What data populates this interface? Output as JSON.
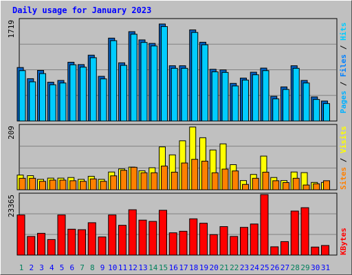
{
  "colors": {
    "background": "#c0c0c0",
    "plot_bg": "#c0c0c0",
    "title": "#0000ff",
    "hits": "#00ccff",
    "files": "#0080ff",
    "pages": "#00b0ff",
    "visits": "#ffff00",
    "sites": "#ff8000",
    "kbytes": "#ff0000",
    "weekend_day": "#00805c",
    "weekday": "#0000ff"
  },
  "chart_data": [
    {
      "type": "bar",
      "title": "Daily usage for January 2023",
      "max_label": "1719",
      "legend": [
        "Pages",
        "Files",
        "Hits"
      ],
      "legend_colors": [
        "#00b0ff",
        "#0080ff",
        "#00ccff"
      ],
      "ylim": [
        0,
        1719
      ],
      "categories": [
        "1",
        "2",
        "3",
        "4",
        "5",
        "6",
        "7",
        "8",
        "9",
        "10",
        "11",
        "12",
        "13",
        "14",
        "15",
        "16",
        "17",
        "18",
        "19",
        "20",
        "21",
        "22",
        "23",
        "24",
        "25",
        "26",
        "27",
        "28",
        "29",
        "30",
        "31"
      ],
      "series": [
        {
          "name": "Files",
          "values": [
            910,
            720,
            860,
            660,
            690,
            1000,
            960,
            1120,
            760,
            1410,
            990,
            1520,
            1380,
            1320,
            1650,
            940,
            940,
            1550,
            1340,
            880,
            870,
            640,
            730,
            830,
            900,
            420,
            580,
            940,
            690,
            410,
            340
          ]
        },
        {
          "name": "Hits",
          "values": [
            880,
            690,
            830,
            640,
            670,
            980,
            940,
            1100,
            740,
            1390,
            970,
            1500,
            1360,
            1300,
            1630,
            920,
            920,
            1530,
            1320,
            860,
            850,
            620,
            720,
            810,
            880,
            400,
            560,
            920,
            670,
            390,
            320
          ]
        }
      ]
    },
    {
      "type": "bar",
      "max_label": "209",
      "legend": [
        "Sites",
        "Visits"
      ],
      "legend_colors": [
        "#ff8000",
        "#ffff00"
      ],
      "ylim": [
        0,
        209
      ],
      "series": [
        {
          "name": "Visits",
          "values": [
            48,
            46,
            34,
            38,
            38,
            40,
            34,
            44,
            34,
            58,
            68,
            74,
            62,
            72,
            140,
            114,
            160,
            205,
            170,
            130,
            150,
            82,
            30,
            50,
            110,
            40,
            30,
            58,
            56,
            24,
            24
          ]
        },
        {
          "name": "Sites",
          "values": [
            42,
            42,
            32,
            36,
            36,
            34,
            32,
            40,
            32,
            50,
            68,
            78,
            60,
            60,
            82,
            62,
            92,
            104,
            98,
            60,
            72,
            66,
            22,
            42,
            62,
            34,
            28,
            42,
            20,
            24,
            34
          ]
        }
      ]
    },
    {
      "type": "bar",
      "max_label": "23365",
      "legend": [
        "KBytes"
      ],
      "legend_colors": [
        "#ff0000"
      ],
      "ylim": [
        0,
        23365
      ],
      "series": [
        {
          "name": "KBytes",
          "values": [
            15500,
            7200,
            8400,
            6000,
            15500,
            10000,
            9800,
            12500,
            7000,
            15500,
            11500,
            17500,
            13500,
            13000,
            17300,
            8600,
            9200,
            14000,
            12300,
            7900,
            11000,
            7200,
            10700,
            12000,
            23365,
            3200,
            5200,
            17000,
            18300,
            3100,
            3700
          ]
        }
      ]
    }
  ],
  "x_labels": [
    "1",
    "2",
    "3",
    "4",
    "5",
    "6",
    "7",
    "8",
    "9",
    "10",
    "11",
    "12",
    "13",
    "14",
    "15",
    "16",
    "17",
    "18",
    "19",
    "20",
    "21",
    "22",
    "23",
    "24",
    "25",
    "26",
    "27",
    "28",
    "29",
    "30",
    "31"
  ],
  "weekend_days": [
    1,
    7,
    8,
    14,
    15,
    21,
    22,
    28,
    29
  ]
}
